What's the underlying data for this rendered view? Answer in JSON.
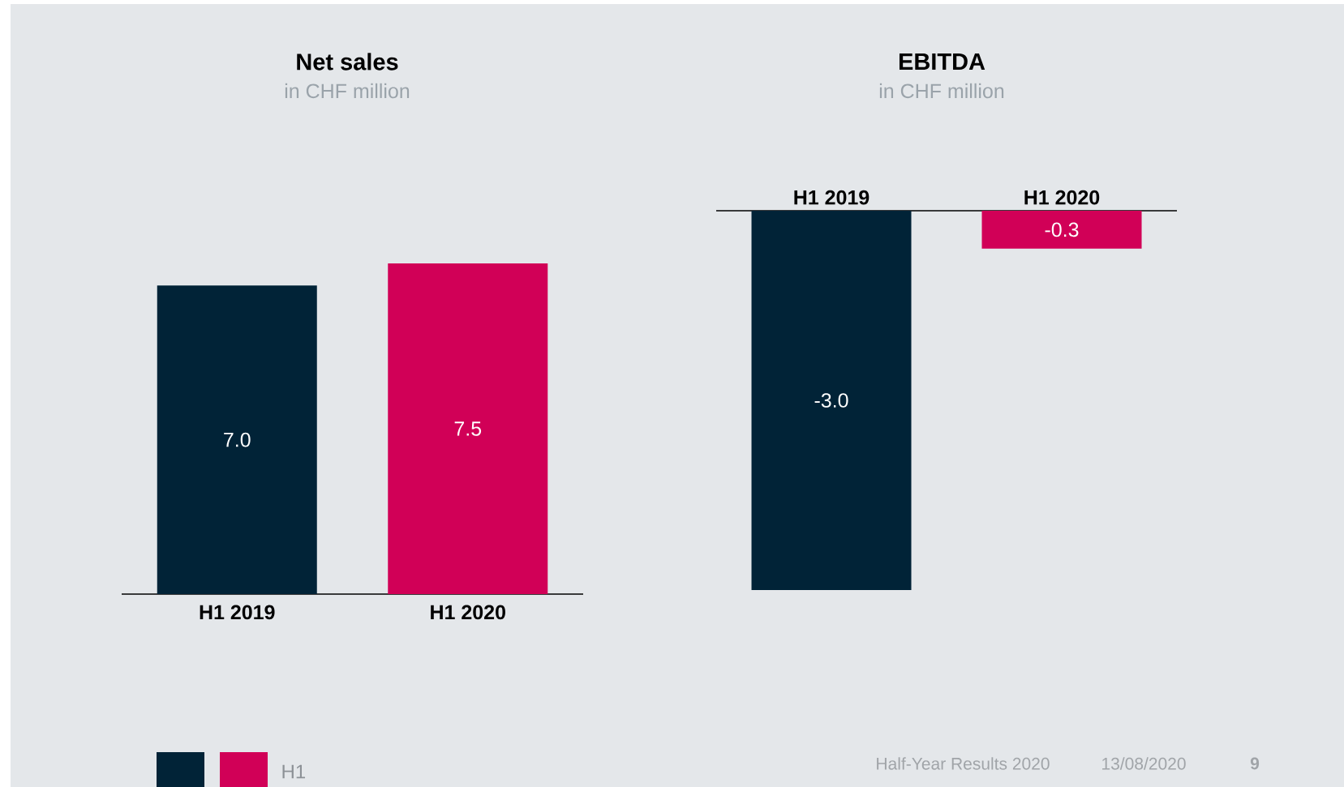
{
  "chart_data": [
    {
      "type": "bar",
      "title": "Net sales",
      "subtitle": "in CHF million",
      "categories": [
        "H1 2019",
        "H1 2020"
      ],
      "series": [
        {
          "name": "H1",
          "colors": [
            "#012337",
            "#d10057"
          ],
          "values": [
            7.0,
            7.5
          ],
          "value_labels": [
            "7.0",
            "7.5"
          ]
        }
      ],
      "legend": "bottom left"
    },
    {
      "type": "bar",
      "title": "EBITDA",
      "subtitle": "in CHF million",
      "categories": [
        "H1 2019",
        "H1 2020"
      ],
      "series": [
        {
          "colors": [
            "#012337",
            "#d10057"
          ],
          "values": [
            -3.0,
            -0.3
          ],
          "value_labels": [
            "-3.0",
            "-0.3"
          ]
        }
      ],
      "annotations": [
        "Half-Year Results 2020",
        "13/08/2020",
        "9"
      ]
    }
  ]
}
